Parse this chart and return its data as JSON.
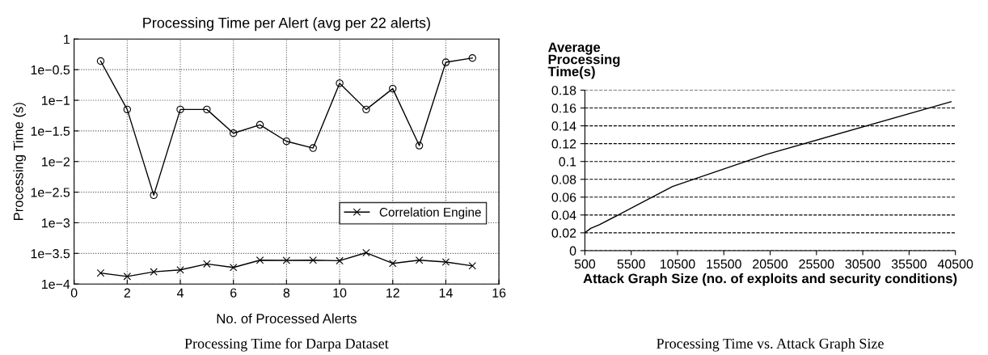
{
  "chart_data": [
    {
      "type": "line",
      "title": "Processing Time per Alert (avg per 22 alerts)",
      "xlabel": "No. of Processed Alerts",
      "ylabel": "Processing Time (s)",
      "log": "y",
      "x": [
        1,
        2,
        3,
        4,
        5,
        6,
        7,
        8,
        9,
        10,
        11,
        12,
        13,
        14,
        15
      ],
      "series": [
        {
          "name": "Correlation Engine",
          "color": "#000000",
          "marker": "cross",
          "values": [
            0.000151,
            0.000133,
            0.000158,
            0.00017,
            0.000213,
            0.000186,
            0.000245,
            0.000243,
            0.000245,
            0.00024,
            0.000324,
            0.000217,
            0.000245,
            0.000229,
            0.000198
          ]
        },
        {
          "color": "#000000",
          "marker": "circle",
          "values": [
            0.437,
            0.0708,
            0.00282,
            0.0708,
            0.0708,
            0.029,
            0.0398,
            0.0214,
            0.0166,
            0.19,
            0.0708,
            0.155,
            0.0182,
            0.417,
            0.49
          ]
        }
      ],
      "xlim": [
        0,
        16
      ],
      "xticks": [
        0,
        2,
        4,
        6,
        8,
        10,
        12,
        14,
        16
      ],
      "ylim": [
        0.0001,
        1
      ],
      "yticks": [
        {
          "value": 0.0001,
          "label": "1e−4"
        },
        {
          "value": 0.000316,
          "label": "1e−3.5"
        },
        {
          "value": 0.001,
          "label": "1e−3"
        },
        {
          "value": 0.00316,
          "label": "1e−2.5"
        },
        {
          "value": 0.01,
          "label": "1e−2"
        },
        {
          "value": 0.0316,
          "label": "1e−1.5"
        },
        {
          "value": 0.1,
          "label": "1e−1"
        },
        {
          "value": 0.316,
          "label": "1e−0.5"
        },
        1
      ],
      "grid": true,
      "legend": "lower right",
      "line_style": "solid",
      "annotations": [
        "Processing Time for Darpa Dataset"
      ]
    },
    {
      "type": "line",
      "xlabel": "Attack Graph Size (no. of exploits and security conditions)",
      "ylabel": "Average Processing Time(s)",
      "x": [
        500,
        1130,
        2070,
        9960,
        20120,
        40030
      ],
      "series": [
        {
          "color": "#000000",
          "values": [
            0.02,
            0.025,
            0.029,
            0.072,
            0.108,
            0.167
          ]
        }
      ],
      "xlim": [
        500,
        40500
      ],
      "xticks": [
        500,
        5500,
        10500,
        15500,
        20500,
        25500,
        30500,
        35500,
        40500
      ],
      "ylim": [
        0,
        0.18
      ],
      "yticks": [
        0,
        0.02,
        0.04,
        0.06,
        0.08,
        0.1,
        0.12,
        0.14,
        0.16,
        0.18
      ],
      "grid": "y",
      "line_style": "solid",
      "annotations": [
        "Processing Time vs. Attack Graph Size"
      ]
    }
  ]
}
